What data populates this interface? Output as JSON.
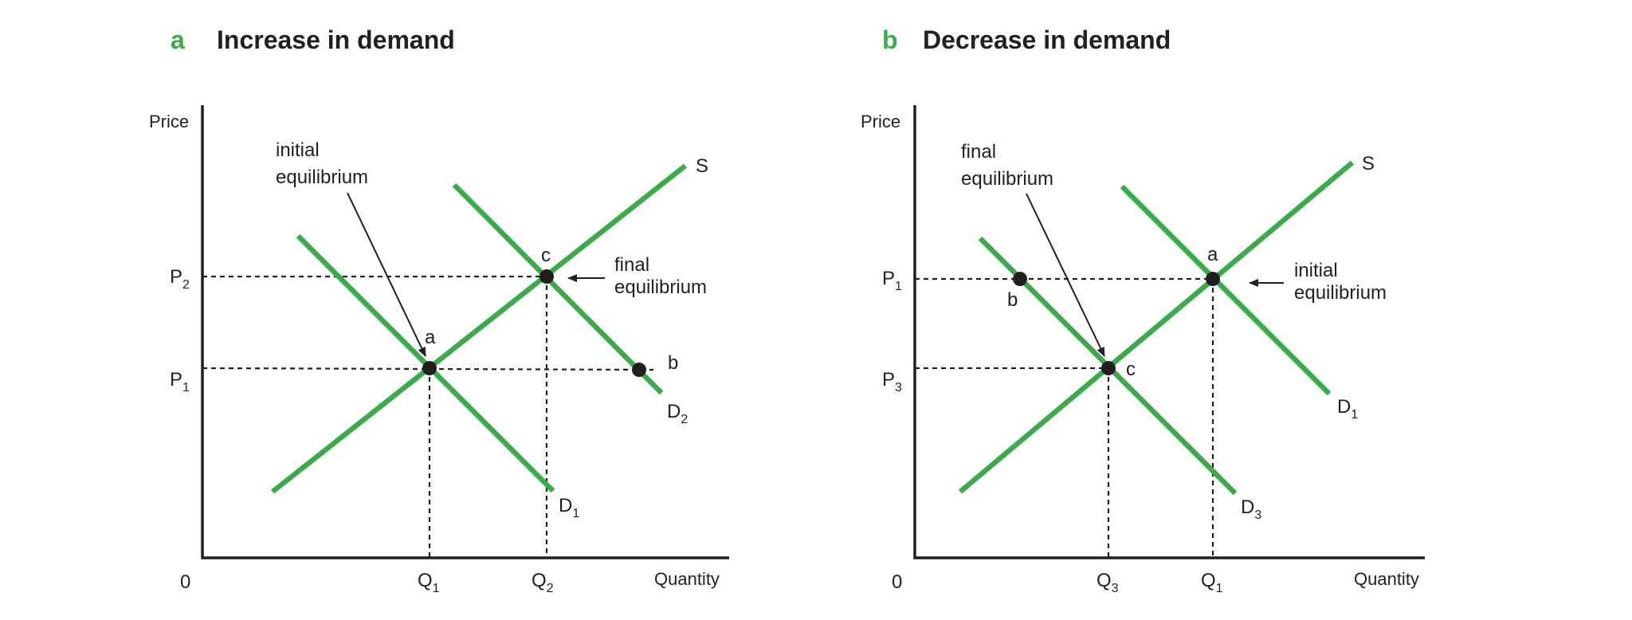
{
  "colors": {
    "curve": "#3bab4a",
    "letter": "#3bab4a",
    "ink": "#231f20"
  },
  "panels": [
    {
      "letter": "a",
      "title": "Increase in demand",
      "axis": {
        "y_label": "Price",
        "x_label": "Quantity",
        "origin": "0"
      },
      "curves": {
        "supply": "S",
        "demand_initial": {
          "base": "D",
          "sub": "1"
        },
        "demand_final": {
          "base": "D",
          "sub": "2"
        }
      },
      "prices": [
        {
          "base": "P",
          "sub": "2"
        },
        {
          "base": "P",
          "sub": "1"
        }
      ],
      "quantities": [
        {
          "base": "Q",
          "sub": "1"
        },
        {
          "base": "Q",
          "sub": "2"
        }
      ],
      "points": {
        "a": "a",
        "b": "b",
        "c": "c"
      },
      "annotations": {
        "initial": [
          "initial",
          "equilibrium"
        ],
        "final": [
          "final",
          "equilibrium"
        ]
      }
    },
    {
      "letter": "b",
      "title": "Decrease in demand",
      "axis": {
        "y_label": "Price",
        "x_label": "Quantity",
        "origin": "0"
      },
      "curves": {
        "supply": "S",
        "demand_initial": {
          "base": "D",
          "sub": "1"
        },
        "demand_final": {
          "base": "D",
          "sub": "3"
        }
      },
      "prices": [
        {
          "base": "P",
          "sub": "1"
        },
        {
          "base": "P",
          "sub": "3"
        }
      ],
      "quantities": [
        {
          "base": "Q",
          "sub": "3"
        },
        {
          "base": "Q",
          "sub": "1"
        }
      ],
      "points": {
        "a": "a",
        "b": "b",
        "c": "c"
      },
      "annotations": {
        "final": [
          "final",
          "equilibrium"
        ],
        "initial": [
          "initial",
          "equilibrium"
        ]
      }
    }
  ]
}
